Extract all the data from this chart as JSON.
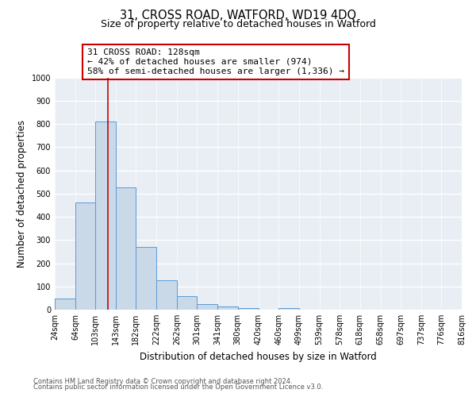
{
  "title": "31, CROSS ROAD, WATFORD, WD19 4DQ",
  "subtitle": "Size of property relative to detached houses in Watford",
  "xlabel": "Distribution of detached houses by size in Watford",
  "ylabel": "Number of detached properties",
  "bar_values": [
    47,
    460,
    810,
    525,
    270,
    125,
    57,
    25,
    15,
    8,
    0,
    8,
    0,
    0,
    0,
    0,
    0,
    0,
    0,
    0
  ],
  "bar_color": "#c9d9e8",
  "bar_edge_color": "#5b9bd5",
  "background_color": "#e8eef4",
  "grid_color": "#ffffff",
  "vline_x": 128,
  "vline_color": "#cc0000",
  "annotation_text": "31 CROSS ROAD: 128sqm\n← 42% of detached houses are smaller (974)\n58% of semi-detached houses are larger (1,336) →",
  "annotation_box_color": "#ffffff",
  "annotation_box_edge_color": "#cc0000",
  "ylim": [
    0,
    1000
  ],
  "yticks": [
    0,
    100,
    200,
    300,
    400,
    500,
    600,
    700,
    800,
    900,
    1000
  ],
  "bin_edges": [
    24,
    64,
    103,
    143,
    182,
    222,
    262,
    301,
    341,
    380,
    420,
    460,
    499,
    539,
    578,
    618,
    658,
    697,
    737,
    776,
    816
  ],
  "xtick_labels": [
    "24sqm",
    "64sqm",
    "103sqm",
    "143sqm",
    "182sqm",
    "222sqm",
    "262sqm",
    "301sqm",
    "341sqm",
    "380sqm",
    "420sqm",
    "460sqm",
    "499sqm",
    "539sqm",
    "578sqm",
    "618sqm",
    "658sqm",
    "697sqm",
    "737sqm",
    "776sqm",
    "816sqm"
  ],
  "footer_line1": "Contains HM Land Registry data © Crown copyright and database right 2024.",
  "footer_line2": "Contains public sector information licensed under the Open Government Licence v3.0.",
  "title_fontsize": 10.5,
  "subtitle_fontsize": 9,
  "axis_label_fontsize": 8.5,
  "tick_fontsize": 7,
  "annotation_fontsize": 8,
  "footer_fontsize": 6
}
